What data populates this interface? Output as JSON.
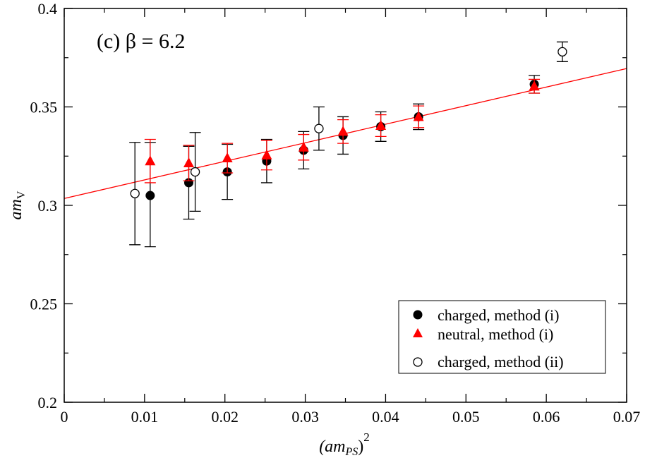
{
  "chart_data": {
    "type": "scatter",
    "panel_label": "(c) β = 6.2",
    "xlabel": {
      "base": "(am",
      "sub": "PS",
      "close": ")",
      "sup": "2"
    },
    "ylabel": {
      "base": "am",
      "sub": "V"
    },
    "xlim": [
      0,
      0.07
    ],
    "ylim": [
      0.2,
      0.4
    ],
    "xticks": [
      0,
      0.01,
      0.02,
      0.03,
      0.04,
      0.05,
      0.06,
      0.07
    ],
    "xtick_labels": [
      "0",
      "0.01",
      "0.02",
      "0.03",
      "0.04",
      "0.05",
      "0.06",
      "0.07"
    ],
    "yticks": [
      0.2,
      0.25,
      0.3,
      0.35,
      0.4
    ],
    "ytick_labels": [
      "0.2",
      "0.25",
      "0.3",
      "0.35",
      "0.4"
    ],
    "legend_position": "bottom-right",
    "series": [
      {
        "name": "charged, method (i)",
        "marker": "filled-circle",
        "color": "#000000",
        "points": [
          {
            "x": 0.0107,
            "y": 0.305,
            "yerr_lo": 0.026,
            "yerr_hi": 0.027
          },
          {
            "x": 0.0155,
            "y": 0.3115,
            "yerr_lo": 0.0185,
            "yerr_hi": 0.0185
          },
          {
            "x": 0.0203,
            "y": 0.317,
            "yerr_lo": 0.014,
            "yerr_hi": 0.014
          },
          {
            "x": 0.0252,
            "y": 0.3225,
            "yerr_lo": 0.011,
            "yerr_hi": 0.011
          },
          {
            "x": 0.0298,
            "y": 0.328,
            "yerr_lo": 0.0095,
            "yerr_hi": 0.0095
          },
          {
            "x": 0.0347,
            "y": 0.3355,
            "yerr_lo": 0.0095,
            "yerr_hi": 0.0095
          },
          {
            "x": 0.0394,
            "y": 0.34,
            "yerr_lo": 0.0075,
            "yerr_hi": 0.0075
          },
          {
            "x": 0.0441,
            "y": 0.345,
            "yerr_lo": 0.0065,
            "yerr_hi": 0.0065
          },
          {
            "x": 0.0585,
            "y": 0.3615,
            "yerr_lo": 0.0045,
            "yerr_hi": 0.0045
          }
        ]
      },
      {
        "name": "neutral, method (i)",
        "marker": "filled-triangle",
        "color": "#ff0000",
        "points": [
          {
            "x": 0.0107,
            "y": 0.3225,
            "yerr_lo": 0.011,
            "yerr_hi": 0.011
          },
          {
            "x": 0.0155,
            "y": 0.3215,
            "yerr_lo": 0.009,
            "yerr_hi": 0.009
          },
          {
            "x": 0.0203,
            "y": 0.324,
            "yerr_lo": 0.0075,
            "yerr_hi": 0.0075
          },
          {
            "x": 0.0252,
            "y": 0.3255,
            "yerr_lo": 0.0075,
            "yerr_hi": 0.0075
          },
          {
            "x": 0.0298,
            "y": 0.3295,
            "yerr_lo": 0.0065,
            "yerr_hi": 0.0065
          },
          {
            "x": 0.0347,
            "y": 0.3375,
            "yerr_lo": 0.006,
            "yerr_hi": 0.006
          },
          {
            "x": 0.0394,
            "y": 0.3405,
            "yerr_lo": 0.0055,
            "yerr_hi": 0.0055
          },
          {
            "x": 0.0441,
            "y": 0.345,
            "yerr_lo": 0.0055,
            "yerr_hi": 0.0055
          },
          {
            "x": 0.0585,
            "y": 0.3605,
            "yerr_lo": 0.0035,
            "yerr_hi": 0.0035
          }
        ]
      },
      {
        "name": "charged, method (ii)",
        "marker": "open-circle",
        "color": "#000000",
        "points": [
          {
            "x": 0.0088,
            "y": 0.306,
            "yerr_lo": 0.026,
            "yerr_hi": 0.026
          },
          {
            "x": 0.0163,
            "y": 0.317,
            "yerr_lo": 0.02,
            "yerr_hi": 0.02
          },
          {
            "x": 0.0317,
            "y": 0.339,
            "yerr_lo": 0.011,
            "yerr_hi": 0.011
          },
          {
            "x": 0.062,
            "y": 0.378,
            "yerr_lo": 0.005,
            "yerr_hi": 0.005
          }
        ]
      }
    ],
    "fit_line": {
      "color": "#ff0000",
      "x0": 0,
      "y0": 0.3035,
      "x1": 0.07,
      "y1": 0.3695
    }
  }
}
